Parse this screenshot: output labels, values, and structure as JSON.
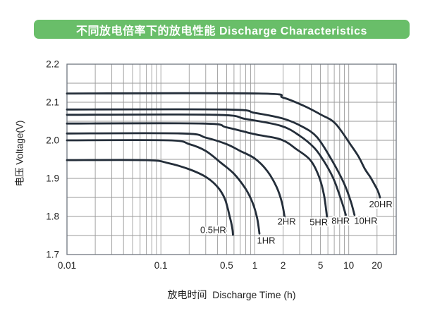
{
  "header": {
    "title": "不同放电倍率下的放电性能 Discharge Characteristics"
  },
  "colors": {
    "title_bg": "#69be69",
    "title_text": "#ffffff",
    "curve": "#242e3a",
    "grid": "#9a9a9a",
    "plot_border": "#6f7680",
    "axis_text": "#1f1f1f"
  },
  "chart_data": {
    "type": "line",
    "title": "不同放电倍率下的放电性能 Discharge Characteristics",
    "xlabel": "放电时间  Discharge Time (h)",
    "ylabel": "电压 Voltage(V)",
    "x_scale": "log",
    "xlim": [
      0.01,
      32
    ],
    "ylim": [
      1.7,
      2.2
    ],
    "grid": true,
    "y_grid_step": 0.05,
    "x_ticks": [
      {
        "v": 0.01,
        "label": "0.01"
      },
      {
        "v": 0.1,
        "label": "0.1"
      },
      {
        "v": 0.5,
        "label": "0.5"
      },
      {
        "v": 1,
        "label": "1"
      },
      {
        "v": 2,
        "label": "2"
      },
      {
        "v": 5,
        "label": "5"
      },
      {
        "v": 10,
        "label": "10"
      },
      {
        "v": 20,
        "label": "20"
      }
    ],
    "y_ticks": [
      {
        "v": 2.2,
        "label": "2.2"
      },
      {
        "v": 2.1,
        "label": "2.1"
      },
      {
        "v": 2.0,
        "label": "2.0"
      },
      {
        "v": 1.9,
        "label": "1.9"
      },
      {
        "v": 1.8,
        "label": "1.8"
      },
      {
        "v": 1.7,
        "label": "1.7"
      }
    ],
    "series": [
      {
        "name": "0.5HR",
        "rate_hours": 0.5,
        "points": [
          [
            0.01,
            1.948
          ],
          [
            0.07,
            1.948
          ],
          [
            0.12,
            1.94
          ],
          [
            0.2,
            1.924
          ],
          [
            0.3,
            1.904
          ],
          [
            0.4,
            1.878
          ],
          [
            0.48,
            1.846
          ],
          [
            0.54,
            1.8
          ],
          [
            0.575,
            1.77
          ],
          [
            0.585,
            1.752
          ]
        ],
        "label": {
          "t": 0.36,
          "v": 1.765
        }
      },
      {
        "name": "1HR",
        "rate_hours": 1,
        "points": [
          [
            0.01,
            2.0
          ],
          [
            0.12,
            2.0
          ],
          [
            0.2,
            1.99
          ],
          [
            0.3,
            1.972
          ],
          [
            0.44,
            1.94
          ],
          [
            0.6,
            1.912
          ],
          [
            0.8,
            1.872
          ],
          [
            0.95,
            1.835
          ],
          [
            1.06,
            1.795
          ],
          [
            1.12,
            1.755
          ]
        ],
        "label": {
          "t": 1.32,
          "v": 1.737
        }
      },
      {
        "name": "2HR",
        "rate_hours": 2,
        "points": [
          [
            0.01,
            2.018
          ],
          [
            0.17,
            2.018
          ],
          [
            0.3,
            2.007
          ],
          [
            0.5,
            1.99
          ],
          [
            0.7,
            1.972
          ],
          [
            1.0,
            1.952
          ],
          [
            1.35,
            1.92
          ],
          [
            1.7,
            1.878
          ],
          [
            1.95,
            1.835
          ],
          [
            2.1,
            1.79
          ]
        ],
        "label": {
          "t": 2.18,
          "v": 1.787
        }
      },
      {
        "name": "5HR",
        "rate_hours": 5,
        "points": [
          [
            0.01,
            2.044
          ],
          [
            0.28,
            2.044
          ],
          [
            0.5,
            2.034
          ],
          [
            1.0,
            2.016
          ],
          [
            1.9,
            2.002
          ],
          [
            2.8,
            1.976
          ],
          [
            3.9,
            1.948
          ],
          [
            4.8,
            1.906
          ],
          [
            5.45,
            1.856
          ],
          [
            5.85,
            1.8
          ]
        ],
        "label": {
          "t": 4.8,
          "v": 1.785
        }
      },
      {
        "name": "8HR",
        "rate_hours": 8,
        "points": [
          [
            0.01,
            2.067
          ],
          [
            0.38,
            2.067
          ],
          [
            0.8,
            2.056
          ],
          [
            1.9,
            2.038
          ],
          [
            3.0,
            2.012
          ],
          [
            4.3,
            1.98
          ],
          [
            5.35,
            1.948
          ],
          [
            6.4,
            1.915
          ],
          [
            7.2,
            1.887
          ],
          [
            8.5,
            1.836
          ],
          [
            9.3,
            1.804
          ]
        ],
        "label": {
          "t": 8.2,
          "v": 1.789
        }
      },
      {
        "name": "10HR",
        "rate_hours": 10,
        "points": [
          [
            0.01,
            2.081
          ],
          [
            0.5,
            2.081
          ],
          [
            1.0,
            2.072
          ],
          [
            2.0,
            2.057
          ],
          [
            3.2,
            2.036
          ],
          [
            4.6,
            2.008
          ],
          [
            6.6,
            1.948
          ],
          [
            8.9,
            1.887
          ],
          [
            10.5,
            1.84
          ],
          [
            11.5,
            1.804
          ]
        ],
        "label": {
          "t": 15.2,
          "v": 1.789
        }
      },
      {
        "name": "20HR",
        "rate_hours": 20,
        "points": [
          [
            0.01,
            2.123
          ],
          [
            1.1,
            2.123
          ],
          [
            2.0,
            2.112
          ],
          [
            3.3,
            2.091
          ],
          [
            5.0,
            2.068
          ],
          [
            7.2,
            2.044
          ],
          [
            10.7,
            1.985
          ],
          [
            12.8,
            1.956
          ],
          [
            14.9,
            1.924
          ],
          [
            16.8,
            1.905
          ],
          [
            18.5,
            1.887
          ],
          [
            20.5,
            1.866
          ],
          [
            21.5,
            1.85
          ]
        ],
        "label": {
          "t": 21.9,
          "v": 1.832
        }
      }
    ]
  }
}
